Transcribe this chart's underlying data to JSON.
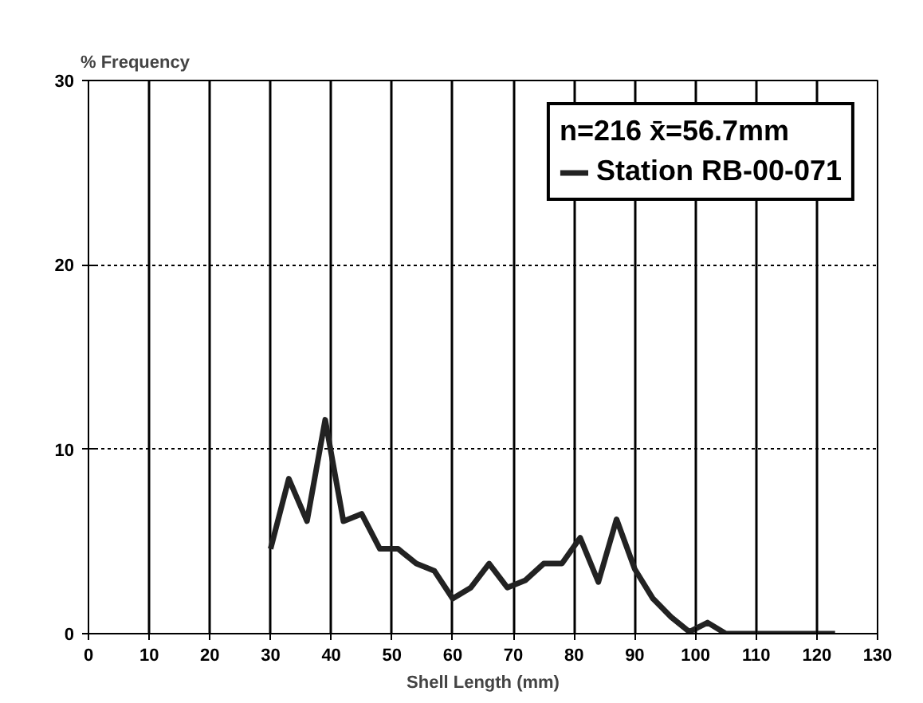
{
  "chart_data": {
    "type": "line",
    "xlabel": "Shell Length (mm)",
    "ylabel": "% Frequency",
    "legend_title": "n=216 x̄=56.7mm",
    "x": [
      30,
      33,
      36,
      39,
      42,
      45,
      48,
      51,
      54,
      57,
      60,
      63,
      66,
      69,
      72,
      75,
      78,
      81,
      84,
      87,
      90,
      93,
      96,
      99,
      102,
      105,
      123
    ],
    "series": [
      {
        "name": "Station RB-00-071",
        "color": "#222222",
        "values": [
          4.6,
          8.4,
          6.1,
          11.6,
          6.1,
          6.5,
          4.6,
          4.6,
          3.8,
          3.4,
          1.9,
          2.5,
          3.8,
          2.5,
          2.9,
          3.8,
          3.8,
          5.2,
          2.8,
          6.2,
          3.5,
          1.9,
          0.9,
          0.1,
          0.6,
          0,
          0
        ]
      }
    ],
    "xlim": [
      0,
      130
    ],
    "xticks": [
      0,
      10,
      20,
      30,
      40,
      50,
      60,
      70,
      80,
      90,
      100,
      110,
      120,
      130
    ],
    "ylim": [
      0,
      30
    ],
    "yticks": [
      0,
      10,
      20,
      30
    ],
    "grid": true,
    "legend": "top right",
    "marker": "none",
    "line_style": "solid"
  }
}
